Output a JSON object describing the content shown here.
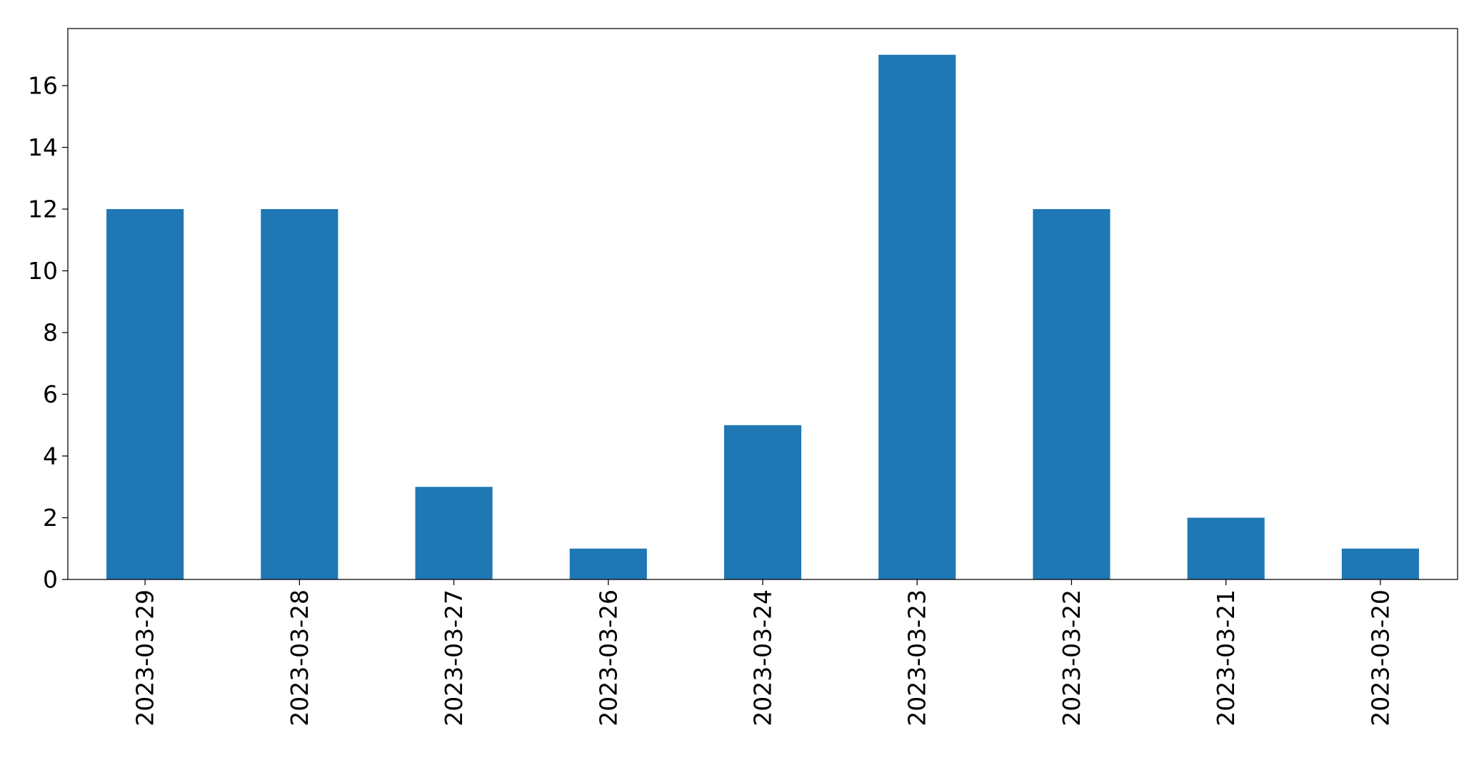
{
  "chart_data": {
    "type": "bar",
    "categories": [
      "2023-03-29",
      "2023-03-28",
      "2023-03-27",
      "2023-03-26",
      "2023-03-24",
      "2023-03-23",
      "2023-03-22",
      "2023-03-21",
      "2023-03-20"
    ],
    "values": [
      12,
      12,
      3,
      1,
      5,
      17,
      12,
      2,
      1
    ],
    "title": "",
    "xlabel": "",
    "ylabel": "",
    "ylim": [
      0,
      17.85
    ],
    "yticks": [
      0,
      2,
      4,
      6,
      8,
      10,
      12,
      14,
      16
    ],
    "grid": false,
    "legend": "none",
    "bar_color": "#1f77b4",
    "x_tick_rotation": "vertical"
  }
}
